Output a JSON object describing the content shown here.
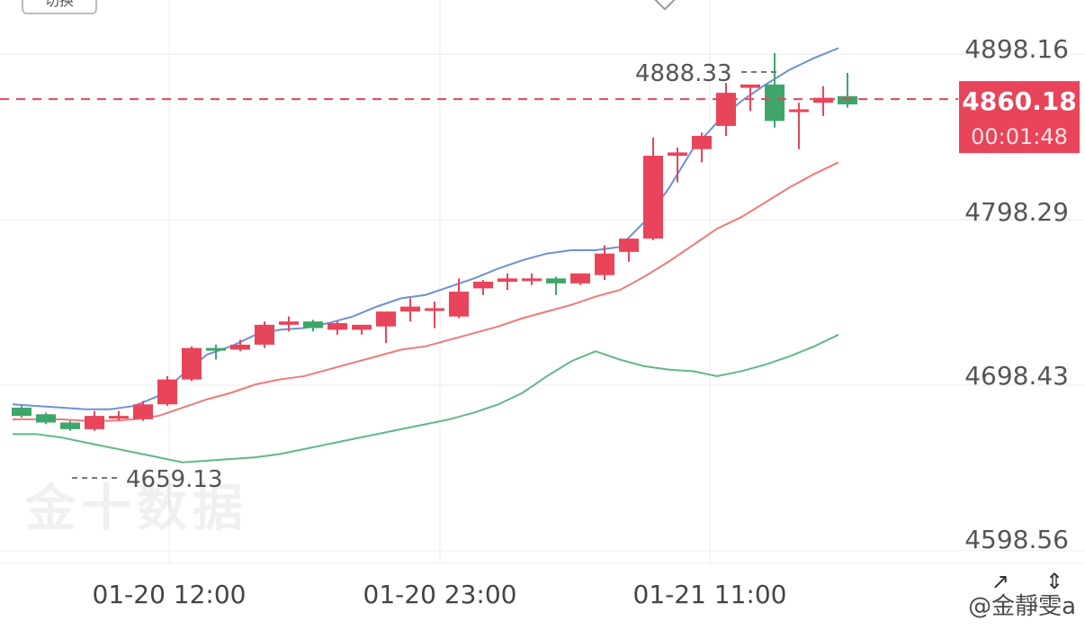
{
  "header": {
    "button_label": "切换",
    "top_icon": "diamond-icon"
  },
  "chart_data": {
    "type": "candlestick",
    "title": "",
    "x_tick_labels": [
      "01-20 12:00",
      "01-20 23:00",
      "01-21 11:00"
    ],
    "y_tick_labels": [
      "4898.16",
      "4798.29",
      "4698.43",
      "4598.56"
    ],
    "ylim": [
      4580,
      4920
    ],
    "grid": true,
    "last_price": "4860.18",
    "countdown": "00:01:48",
    "high_marker": "4888.33",
    "low_marker": "4659.13",
    "candles": [
      {
        "open": 4674,
        "high": 4675,
        "low": 4668,
        "close": 4669
      },
      {
        "open": 4670,
        "high": 4671,
        "low": 4664,
        "close": 4665
      },
      {
        "open": 4665,
        "high": 4666,
        "low": 4660,
        "close": 4661
      },
      {
        "open": 4661,
        "high": 4672,
        "low": 4660,
        "close": 4669
      },
      {
        "open": 4668,
        "high": 4672,
        "low": 4666,
        "close": 4669
      },
      {
        "open": 4667,
        "high": 4678,
        "low": 4666,
        "close": 4676
      },
      {
        "open": 4676,
        "high": 4693,
        "low": 4675,
        "close": 4691
      },
      {
        "open": 4691,
        "high": 4711,
        "low": 4690,
        "close": 4710
      },
      {
        "open": 4710,
        "high": 4712,
        "low": 4703,
        "close": 4709
      },
      {
        "open": 4709,
        "high": 4715,
        "low": 4708,
        "close": 4712
      },
      {
        "open": 4712,
        "high": 4726,
        "low": 4710,
        "close": 4724
      },
      {
        "open": 4724,
        "high": 4729,
        "low": 4720,
        "close": 4726
      },
      {
        "open": 4726,
        "high": 4727,
        "low": 4720,
        "close": 4722
      },
      {
        "open": 4721,
        "high": 4726,
        "low": 4718,
        "close": 4725
      },
      {
        "open": 4721,
        "high": 4724,
        "low": 4718,
        "close": 4724
      },
      {
        "open": 4723,
        "high": 4731,
        "low": 4713,
        "close": 4732
      },
      {
        "open": 4732,
        "high": 4740,
        "low": 4726,
        "close": 4735
      },
      {
        "open": 4734,
        "high": 4738,
        "low": 4722,
        "close": 4734
      },
      {
        "open": 4729,
        "high": 4752,
        "low": 4728,
        "close": 4744
      },
      {
        "open": 4746,
        "high": 4751,
        "low": 4742,
        "close": 4750
      },
      {
        "open": 4750,
        "high": 4755,
        "low": 4745,
        "close": 4752
      },
      {
        "open": 4751,
        "high": 4755,
        "low": 4748,
        "close": 4752
      },
      {
        "open": 4752,
        "high": 4753,
        "low": 4742,
        "close": 4749
      },
      {
        "open": 4749,
        "high": 4754,
        "low": 4748,
        "close": 4755
      },
      {
        "open": 4754,
        "high": 4772,
        "low": 4751,
        "close": 4767
      },
      {
        "open": 4768,
        "high": 4774,
        "low": 4762,
        "close": 4776
      },
      {
        "open": 4776,
        "high": 4837,
        "low": 4775,
        "close": 4826
      },
      {
        "open": 4826,
        "high": 4831,
        "low": 4810,
        "close": 4828
      },
      {
        "open": 4830,
        "high": 4840,
        "low": 4822,
        "close": 4838
      },
      {
        "open": 4844,
        "high": 4870,
        "low": 4838,
        "close": 4864
      },
      {
        "open": 4867,
        "high": 4868,
        "low": 4853,
        "close": 4869
      },
      {
        "open": 4869,
        "high": 4888,
        "low": 4843,
        "close": 4847
      },
      {
        "open": 4854,
        "high": 4858,
        "low": 4830,
        "close": 4854
      },
      {
        "open": 4858,
        "high": 4868,
        "low": 4850,
        "close": 4861
      },
      {
        "open": 4862,
        "high": 4876,
        "low": 4855,
        "close": 4857
      }
    ],
    "candle_colors": {
      "up": "#e8445a",
      "down": "#3ea66b"
    },
    "bollinger": {
      "upper_color": "#6f8fd8",
      "middle_color": "#ef7a7a",
      "lower_color": "#5fb88a",
      "upper": [
        4676,
        4675,
        4674,
        4673,
        4673,
        4675,
        4681,
        4694,
        4706,
        4711,
        4718,
        4721,
        4722,
        4725,
        4729,
        4735,
        4740,
        4742,
        4747,
        4752,
        4758,
        4763,
        4767,
        4769,
        4769,
        4771,
        4786,
        4806,
        4830,
        4846,
        4859,
        4869,
        4878,
        4885,
        4891
      ],
      "middle": [
        4667,
        4667,
        4667,
        4666,
        4666,
        4667,
        4669,
        4674,
        4679,
        4683,
        4688,
        4691,
        4693,
        4697,
        4701,
        4705,
        4709,
        4711,
        4715,
        4719,
        4723,
        4728,
        4732,
        4736,
        4741,
        4745,
        4753,
        4762,
        4772,
        4782,
        4789,
        4798,
        4807,
        4815,
        4822
      ],
      "lower": [
        4658,
        4658,
        4656,
        4653,
        4650,
        4647,
        4644,
        4641,
        4642,
        4643,
        4644,
        4646,
        4649,
        4652,
        4655,
        4658,
        4661,
        4664,
        4667,
        4671,
        4676,
        4683,
        4693,
        4702,
        4708,
        4703,
        4699,
        4697,
        4696,
        4693,
        4696,
        4700,
        4705,
        4711,
        4718
      ]
    }
  },
  "footer": {
    "left_icon": "expand-icon",
    "right_icon": "fullscreen-icon",
    "watermark_user": "@金靜雯a",
    "watermark_brand": "金十数据"
  }
}
